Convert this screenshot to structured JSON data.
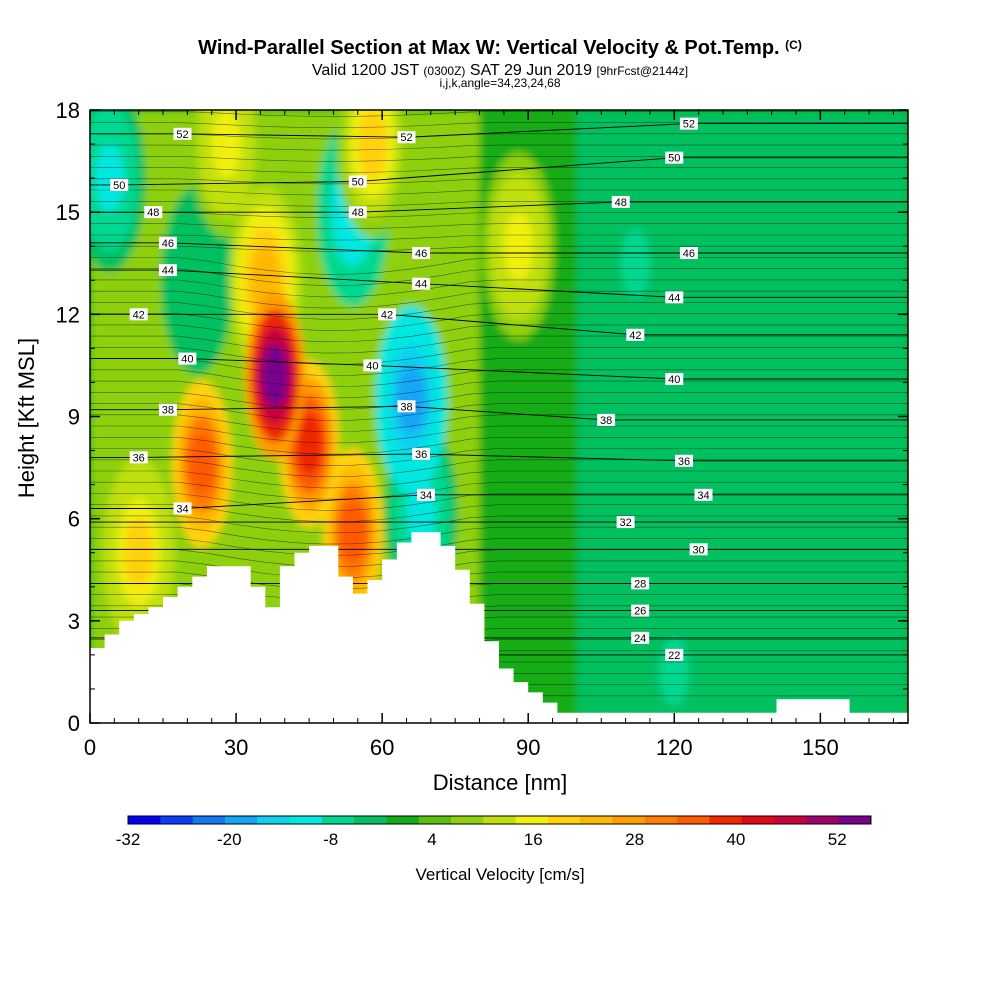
{
  "title": {
    "main": "Wind-Parallel Section at Max W: Vertical Velocity & Pot.Temp.",
    "copyright": "(C)",
    "valid_prefix": "Valid 1200 JST",
    "valid_z": "(0300Z)",
    "valid_date": "SAT 29 Jun 2019",
    "forecast": "[9hrFcst@2144z]",
    "params": "i,j,k,angle=34,23,24,68"
  },
  "chart_data": {
    "type": "heatmap",
    "xlabel": "Distance [nm]",
    "ylabel": "Height [Kft MSL]",
    "xlim": [
      0,
      168
    ],
    "ylim": [
      0,
      18
    ],
    "x_ticks": [
      0,
      30,
      60,
      90,
      120,
      150
    ],
    "y_ticks": [
      0,
      3,
      6,
      9,
      12,
      15,
      18
    ],
    "colorbar": {
      "label": "Vertical Velocity [cm/s]",
      "min": -32,
      "max": 56,
      "tick_labels": [
        -32,
        -20,
        -8,
        4,
        16,
        28,
        40,
        52
      ],
      "colors": [
        "#0000f2",
        "#0a3df5",
        "#1477f5",
        "#12a6f5",
        "#0fd0f0",
        "#00e8e0",
        "#00d890",
        "#00c060",
        "#14ac14",
        "#5ac00f",
        "#8ed00c",
        "#c0e00c",
        "#f0f00a",
        "#ffd20a",
        "#ffb800",
        "#ff9c00",
        "#ff7c00",
        "#ff5a00",
        "#f02800",
        "#e00818",
        "#c8003c",
        "#a0006a",
        "#78008c"
      ]
    },
    "velocity_features": [
      {
        "x": 38,
        "y": 10.2,
        "value": 56
      },
      {
        "x": 45,
        "y": 8.2,
        "value": 40
      },
      {
        "x": 23,
        "y": 7.6,
        "value": 36
      },
      {
        "x": 54,
        "y": 5.6,
        "value": 36
      },
      {
        "x": 36,
        "y": 13.0,
        "value": 24
      },
      {
        "x": 28,
        "y": 17.0,
        "value": 16
      },
      {
        "x": 58,
        "y": 17.0,
        "value": 18
      },
      {
        "x": 88,
        "y": 14.0,
        "value": 16
      },
      {
        "x": 10,
        "y": 5.0,
        "value": 20
      },
      {
        "x": 66,
        "y": 9.5,
        "value": -18
      },
      {
        "x": 68,
        "y": 6.2,
        "value": -10
      },
      {
        "x": 54,
        "y": 15.0,
        "value": -12
      },
      {
        "x": 4,
        "y": 16.0,
        "value": -10
      },
      {
        "x": 22,
        "y": 13.0,
        "value": -4
      },
      {
        "x": 112,
        "y": 13.5,
        "value": -6
      },
      {
        "x": 130,
        "y": 5.0,
        "value": -4
      },
      {
        "x": 120,
        "y": 1.5,
        "value": -6
      },
      {
        "x": 148,
        "y": 8.0,
        "value": -4
      }
    ],
    "theta_contours": [
      {
        "label": "22",
        "pos": [
          120,
          2.0
        ]
      },
      {
        "label": "24",
        "pos": [
          113,
          2.5
        ]
      },
      {
        "label": "26",
        "pos": [
          113,
          3.3
        ]
      },
      {
        "label": "28",
        "pos": [
          113,
          4.1
        ]
      },
      {
        "label": "30",
        "pos": [
          125,
          5.1
        ]
      },
      {
        "label": "32",
        "pos": [
          110,
          5.9
        ]
      },
      {
        "label": "34",
        "pos": [
          19,
          6.3
        ]
      },
      {
        "label": "34",
        "pos": [
          69,
          6.7
        ]
      },
      {
        "label": "34",
        "pos": [
          126,
          6.7
        ]
      },
      {
        "label": "36",
        "pos": [
          10,
          7.8
        ]
      },
      {
        "label": "36",
        "pos": [
          68,
          7.9
        ]
      },
      {
        "label": "36",
        "pos": [
          122,
          7.7
        ]
      },
      {
        "label": "38",
        "pos": [
          16,
          9.2
        ]
      },
      {
        "label": "38",
        "pos": [
          65,
          9.3
        ]
      },
      {
        "label": "38",
        "pos": [
          106,
          8.9
        ]
      },
      {
        "label": "40",
        "pos": [
          20,
          10.7
        ]
      },
      {
        "label": "40",
        "pos": [
          58,
          10.5
        ]
      },
      {
        "label": "40",
        "pos": [
          120,
          10.1
        ]
      },
      {
        "label": "42",
        "pos": [
          10,
          12.0
        ]
      },
      {
        "label": "42",
        "pos": [
          61,
          12.0
        ]
      },
      {
        "label": "42",
        "pos": [
          112,
          11.4
        ]
      },
      {
        "label": "44",
        "pos": [
          16,
          13.3
        ]
      },
      {
        "label": "44",
        "pos": [
          68,
          12.9
        ]
      },
      {
        "label": "44",
        "pos": [
          120,
          12.5
        ]
      },
      {
        "label": "46",
        "pos": [
          16,
          14.1
        ]
      },
      {
        "label": "46",
        "pos": [
          68,
          13.8
        ]
      },
      {
        "label": "46",
        "pos": [
          123,
          13.8
        ]
      },
      {
        "label": "48",
        "pos": [
          13,
          15.0
        ]
      },
      {
        "label": "48",
        "pos": [
          55,
          15.0
        ]
      },
      {
        "label": "48",
        "pos": [
          109,
          15.3
        ]
      },
      {
        "label": "50",
        "pos": [
          6,
          15.8
        ]
      },
      {
        "label": "50",
        "pos": [
          55,
          15.9
        ]
      },
      {
        "label": "50",
        "pos": [
          120,
          16.6
        ]
      },
      {
        "label": "52",
        "pos": [
          19,
          17.3
        ]
      },
      {
        "label": "52",
        "pos": [
          65,
          17.2
        ]
      },
      {
        "label": "52",
        "pos": [
          123,
          17.6
        ]
      }
    ],
    "terrain": {
      "x": [
        0,
        3,
        6,
        9,
        12,
        15,
        18,
        21,
        24,
        27,
        30,
        33,
        36,
        39,
        42,
        45,
        48,
        51,
        54,
        57,
        60,
        63,
        66,
        69,
        72,
        75,
        78,
        81,
        84,
        87,
        90,
        93,
        96,
        99,
        102,
        105,
        108,
        111,
        114,
        117,
        120,
        123,
        126,
        129,
        132,
        135,
        138,
        141,
        144,
        147,
        150,
        153,
        156,
        159,
        162,
        165,
        168
      ],
      "y": [
        2.2,
        2.6,
        3.0,
        3.2,
        3.4,
        3.7,
        4.0,
        4.3,
        4.6,
        4.6,
        4.6,
        4.0,
        3.4,
        4.6,
        5.0,
        5.2,
        5.2,
        4.3,
        3.8,
        4.2,
        4.8,
        5.3,
        5.6,
        5.6,
        5.2,
        4.5,
        3.5,
        2.4,
        1.6,
        1.2,
        0.9,
        0.6,
        0.3,
        0.3,
        0.3,
        0.3,
        0.3,
        0.3,
        0.3,
        0.3,
        0.3,
        0.3,
        0.3,
        0.3,
        0.3,
        0.3,
        0.3,
        0.7,
        0.7,
        0.7,
        0.7,
        0.7,
        0.3,
        0.3,
        0.3,
        0.3,
        0.3
      ]
    }
  }
}
